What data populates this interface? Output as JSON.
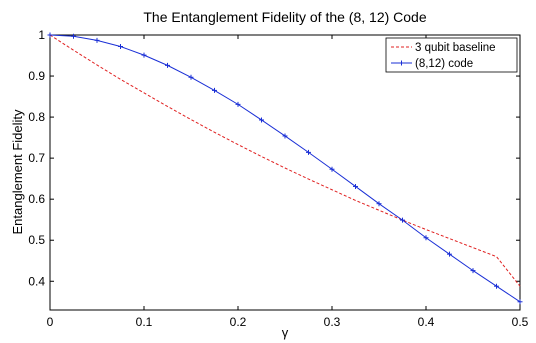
{
  "chart_data": {
    "type": "line",
    "title": "The Entanglement Fidelity of the (8, 12) Code",
    "xlabel": "γ",
    "ylabel": "Entanglement Fidelity",
    "xlim": [
      0,
      0.5
    ],
    "ylim": [
      0.33,
      1.0
    ],
    "x_ticks": [
      0,
      0.1,
      0.2,
      0.3,
      0.4,
      0.5
    ],
    "x_tick_labels": [
      "0",
      "0.1",
      "0.2",
      "0.3",
      "0.4",
      "0.5"
    ],
    "y_ticks": [
      0.4,
      0.5,
      0.6,
      0.7,
      0.8,
      0.9,
      1.0
    ],
    "y_tick_labels": [
      "0.4",
      "0.5",
      "0.6",
      "0.7",
      "0.8",
      "0.9",
      "1"
    ],
    "grid": false,
    "legend_position": "top-right",
    "series": [
      {
        "name": "3 qubit baseline",
        "color": "#e02020",
        "style": "dashed",
        "x": [
          0,
          0.025,
          0.05,
          0.075,
          0.1,
          0.125,
          0.15,
          0.175,
          0.2,
          0.225,
          0.25,
          0.275,
          0.3,
          0.325,
          0.35,
          0.375,
          0.4,
          0.425,
          0.45,
          0.475,
          0.5
        ],
        "values": [
          1.0,
          0.963,
          0.927,
          0.892,
          0.859,
          0.826,
          0.794,
          0.763,
          0.733,
          0.704,
          0.676,
          0.649,
          0.623,
          0.597,
          0.573,
          0.549,
          0.526,
          0.504,
          0.482,
          0.46,
          0.388
        ]
      },
      {
        "name": "(8,12) code",
        "color": "#1a2fd6",
        "style": "solid",
        "marker": "+",
        "x": [
          0,
          0.025,
          0.05,
          0.075,
          0.1,
          0.125,
          0.15,
          0.175,
          0.2,
          0.225,
          0.25,
          0.275,
          0.3,
          0.325,
          0.35,
          0.375,
          0.4,
          0.425,
          0.45,
          0.475,
          0.5
        ],
        "values": [
          1.0,
          0.997,
          0.987,
          0.972,
          0.951,
          0.926,
          0.897,
          0.865,
          0.831,
          0.793,
          0.754,
          0.714,
          0.673,
          0.631,
          0.589,
          0.549,
          0.506,
          0.466,
          0.426,
          0.388,
          0.35
        ]
      }
    ]
  }
}
